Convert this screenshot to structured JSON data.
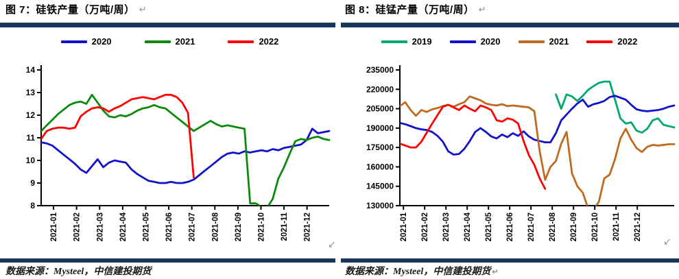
{
  "icons": {
    "return_mark": "↵",
    "corner_arrow": "↙"
  },
  "theme": {
    "rule_color": "#17375E",
    "axis_color": "#000000",
    "text_color": "#000000"
  },
  "chart_data": [
    {
      "type": "line",
      "title": "图 7：硅铁产量（万吨/周）",
      "source": "数据来源：Mysteel，中信建投期货",
      "legend_position": "top",
      "grid": false,
      "x_axis": {
        "labels": [
          "2021-01",
          "2021-02",
          "2021-03",
          "2021-04",
          "2021-05",
          "2021-06",
          "2021-07",
          "2021-08",
          "2021-09",
          "2021-10",
          "2021-11",
          "2021-12"
        ],
        "weeks": 52,
        "tick_start_frac": 0.043,
        "tick_step_frac": 0.08
      },
      "y_axis": {
        "min": 8,
        "max": 14,
        "step": 1
      },
      "series": [
        {
          "name": "2020",
          "color": "#1111CC",
          "start_week": 1,
          "values": [
            10.8,
            10.75,
            10.65,
            10.45,
            10.25,
            10.05,
            9.85,
            9.6,
            9.45,
            9.75,
            10.05,
            9.7,
            9.9,
            10.0,
            9.95,
            9.9,
            9.6,
            9.4,
            9.25,
            9.1,
            9.05,
            9.0,
            9.0,
            9.05,
            9.0,
            9.0,
            9.05,
            9.15,
            9.35,
            9.55,
            9.75,
            9.95,
            10.15,
            10.3,
            10.35,
            10.3,
            10.4,
            10.35,
            10.4,
            10.45,
            10.4,
            10.5,
            10.45,
            10.55,
            10.6,
            10.65,
            10.7,
            10.9,
            11.4,
            11.2,
            11.25,
            11.3
          ]
        },
        {
          "name": "2021",
          "color": "#0A8A0A",
          "start_week": 1,
          "values": [
            11.3,
            11.55,
            11.8,
            12.05,
            12.25,
            12.45,
            12.55,
            12.6,
            12.5,
            12.9,
            12.55,
            12.2,
            11.95,
            11.9,
            12.0,
            11.95,
            12.05,
            12.2,
            12.3,
            12.35,
            12.45,
            12.35,
            12.3,
            12.1,
            11.9,
            11.7,
            11.5,
            11.3,
            11.45,
            11.6,
            11.75,
            11.6,
            11.5,
            11.55,
            11.5,
            11.45,
            11.4,
            8.1,
            8.1,
            7.95,
            7.9,
            8.3,
            9.2,
            9.7,
            10.3,
            10.85,
            10.95,
            10.9,
            11.0,
            11.05,
            10.95,
            10.9
          ]
        },
        {
          "name": "2022",
          "color": "#FF0000",
          "start_week": 1,
          "values": [
            10.95,
            11.3,
            11.4,
            11.45,
            11.45,
            11.4,
            11.45,
            11.95,
            12.15,
            12.3,
            12.35,
            12.3,
            12.15,
            12.3,
            12.4,
            12.55,
            12.7,
            12.75,
            12.8,
            12.75,
            12.7,
            12.8,
            12.9,
            12.9,
            12.8,
            12.55,
            12.1,
            9.25
          ]
        }
      ]
    },
    {
      "type": "line",
      "title": "图 8：硅锰产量（万吨/周）",
      "source": "数据来源：Mysteel，中信建投期货",
      "legend_position": "top",
      "grid": false,
      "x_axis": {
        "labels": [
          "2021-01",
          "2021-02",
          "2021-03",
          "2021-04",
          "2021-05",
          "2021-06",
          "2021-07",
          "2021-08",
          "2021-09",
          "2021-10",
          "2021-11",
          "2021-12"
        ],
        "weeks": 52,
        "tick_start_frac": 0.013,
        "tick_step_frac": 0.0775
      },
      "y_axis": {
        "min": 130000,
        "max": 235000,
        "step": 15000
      },
      "series": [
        {
          "name": "2019",
          "color": "#00A86B",
          "start_week": 30,
          "values": [
            216000,
            205000,
            216000,
            214500,
            211000,
            215000,
            219500,
            222500,
            225000,
            226000,
            226000,
            212000,
            197500,
            193500,
            194500,
            188000,
            186500,
            189500,
            196000,
            197500,
            192500,
            191500,
            190500
          ]
        },
        {
          "name": "2020",
          "color": "#1111CC",
          "start_week": 1,
          "values": [
            194000,
            193000,
            191500,
            190000,
            189000,
            188500,
            187000,
            184000,
            179500,
            172000,
            169500,
            170000,
            174000,
            180000,
            187000,
            190000,
            187000,
            183500,
            182000,
            185000,
            183000,
            186000,
            184000,
            187500,
            183500,
            181000,
            180000,
            179000,
            179000,
            186000,
            196000,
            200500,
            205000,
            209000,
            212000,
            206500,
            208500,
            209500,
            211000,
            214000,
            215000,
            213500,
            212000,
            208000,
            204500,
            203500,
            203000,
            203500,
            204000,
            205000,
            206500,
            207500
          ]
        },
        {
          "name": "2021",
          "color": "#BF6A1E",
          "start_week": 1,
          "values": [
            207000,
            210000,
            204000,
            199500,
            204000,
            202500,
            204500,
            205500,
            207000,
            208000,
            206500,
            208500,
            210000,
            214500,
            213000,
            211500,
            209000,
            208000,
            207500,
            208500,
            207000,
            207500,
            207000,
            206500,
            206000,
            203000,
            172000,
            150000,
            160000,
            164500,
            178000,
            187000,
            155000,
            145000,
            140000,
            128000,
            127000,
            133000,
            151000,
            154000,
            166000,
            182000,
            189500,
            181000,
            174500,
            171500,
            175500,
            177000,
            176500,
            177000,
            177500,
            177500
          ]
        },
        {
          "name": "2022",
          "color": "#FF0000",
          "start_week": 1,
          "values": [
            178000,
            176500,
            175000,
            175000,
            179500,
            186500,
            193500,
            200000,
            206500,
            208000,
            206000,
            204000,
            207500,
            205000,
            203000,
            207500,
            206000,
            204000,
            196000,
            195000,
            197500,
            196500,
            193500,
            180000,
            169000,
            161500,
            151000,
            143000
          ]
        }
      ]
    }
  ]
}
